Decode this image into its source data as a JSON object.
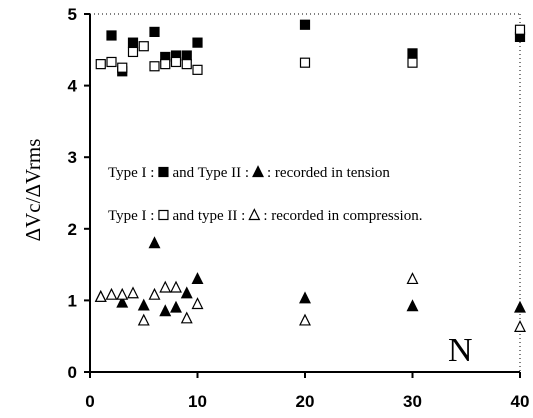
{
  "chart_data": {
    "type": "scatter",
    "ylabel": "ΔVc/ΔVrms",
    "xlabel": "N",
    "xlim": [
      0,
      40
    ],
    "ylim": [
      0,
      5
    ],
    "xticks": [
      0,
      10,
      20,
      30,
      40
    ],
    "yticks": [
      0,
      1,
      2,
      3,
      4,
      5
    ],
    "grid": false,
    "legend_placement": "center",
    "legend": [
      {
        "text_before": "Type I :",
        "marker1": "filled-square",
        "text_mid": "and Type II :",
        "marker2": "filled-triangle",
        "text_after": ": recorded in tension"
      },
      {
        "text_before": "Type I :",
        "marker1": "open-square",
        "text_mid": "and type II :",
        "marker2": "open-triangle",
        "text_after": ": recorded in compression."
      }
    ],
    "series": [
      {
        "marker": "filled-square",
        "points": [
          [
            2,
            4.7
          ],
          [
            3,
            4.2
          ],
          [
            4,
            4.6
          ],
          [
            6,
            4.75
          ],
          [
            7,
            4.4
          ],
          [
            8,
            4.42
          ],
          [
            9,
            4.42
          ],
          [
            10,
            4.6
          ],
          [
            20,
            4.85
          ],
          [
            30,
            4.45
          ],
          [
            40,
            4.68
          ]
        ]
      },
      {
        "marker": "open-square",
        "points": [
          [
            1,
            4.3
          ],
          [
            2,
            4.33
          ],
          [
            3,
            4.25
          ],
          [
            4,
            4.47
          ],
          [
            5,
            4.55
          ],
          [
            6,
            4.27
          ],
          [
            7,
            4.3
          ],
          [
            8,
            4.33
          ],
          [
            9,
            4.3
          ],
          [
            10,
            4.22
          ],
          [
            20,
            4.32
          ],
          [
            30,
            4.32
          ],
          [
            40,
            4.78
          ]
        ]
      },
      {
        "marker": "filled-triangle",
        "points": [
          [
            1,
            1.05
          ],
          [
            3,
            0.97
          ],
          [
            5,
            0.93
          ],
          [
            6,
            1.8
          ],
          [
            7,
            0.85
          ],
          [
            8,
            0.9
          ],
          [
            9,
            1.1
          ],
          [
            10,
            1.3
          ],
          [
            20,
            1.03
          ],
          [
            30,
            0.92
          ],
          [
            40,
            0.9
          ]
        ]
      },
      {
        "marker": "open-triangle",
        "points": [
          [
            1,
            1.05
          ],
          [
            2,
            1.08
          ],
          [
            3,
            1.08
          ],
          [
            4,
            1.1
          ],
          [
            5,
            0.72
          ],
          [
            6,
            1.08
          ],
          [
            7,
            1.18
          ],
          [
            8,
            1.18
          ],
          [
            9,
            0.75
          ],
          [
            10,
            0.95
          ],
          [
            20,
            0.72
          ],
          [
            30,
            1.3
          ],
          [
            40,
            0.63
          ]
        ]
      }
    ]
  }
}
